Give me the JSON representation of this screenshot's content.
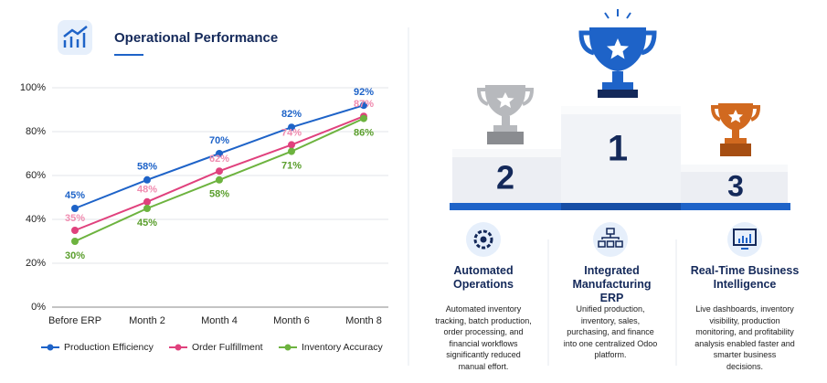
{
  "chart_data": {
    "type": "line",
    "title": "Operational Performance",
    "categories": [
      "Before ERP",
      "Month 2",
      "Month 4",
      "Month 6",
      "Month 8"
    ],
    "series": [
      {
        "name": "Production Efficiency",
        "color": "#1e63c8",
        "values": [
          45,
          58,
          70,
          82,
          92
        ],
        "value_labels": [
          "45%",
          "58%",
          "70%",
          "82%",
          "92%"
        ]
      },
      {
        "name": "Order Fulfillment",
        "color": "#e0417d",
        "values": [
          35,
          48,
          62,
          74,
          87
        ],
        "value_labels": [
          "35%",
          "48%",
          "62%",
          "74%",
          "87%"
        ]
      },
      {
        "name": "Inventory Accuracy",
        "color": "#6db33f",
        "values": [
          30,
          45,
          58,
          71,
          86
        ],
        "value_labels": [
          "30%",
          "45%",
          "58%",
          "71%",
          "86%"
        ]
      }
    ],
    "ylim": [
      0,
      100
    ],
    "yticks": [
      {
        "value": 0,
        "label": "0%"
      },
      {
        "value": 20,
        "label": "20%"
      },
      {
        "value": 40,
        "label": "40%"
      },
      {
        "value": 60,
        "label": "60%"
      },
      {
        "value": 80,
        "label": "80%"
      },
      {
        "value": 100,
        "label": "100%"
      }
    ],
    "grid": true,
    "legend": "bottom"
  },
  "podium": {
    "places": [
      "2",
      "1",
      "3"
    ]
  },
  "features": [
    {
      "title": "Automated Operations",
      "text": "Automated inventory tracking, batch production, order processing, and financial workflows significantly reduced manual effort."
    },
    {
      "title": "Integrated Manufacturing ERP",
      "text": "Unified production, inventory, sales, purchasing, and finance into one centralized Odoo platform."
    },
    {
      "title": "Real-Time Business Intelligence",
      "text": "Live dashboards, inventory visibility, production monitoring, and profitability analysis enabled faster and smarter business decisions."
    }
  ]
}
